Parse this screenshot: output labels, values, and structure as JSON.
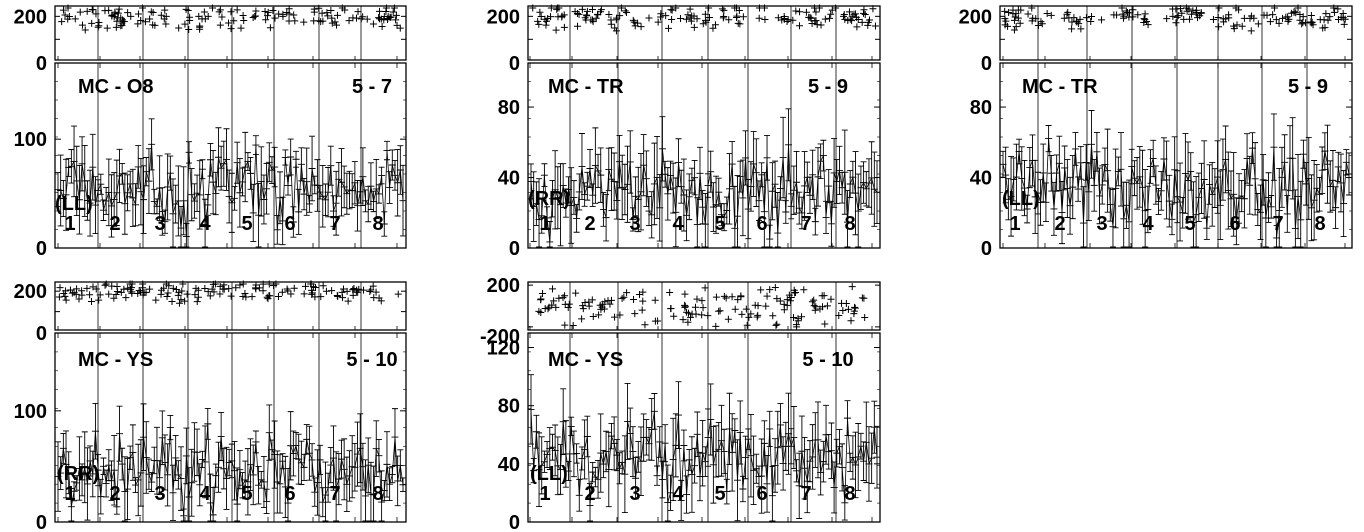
{
  "chart_data": [
    {
      "type": "scatter",
      "title": "MC - O8",
      "baseline": "5 - 7",
      "polarization": "(LL)",
      "phase_axis": {
        "ticks": [
          "200",
          "0"
        ],
        "ylim": [
          -180,
          290
        ]
      },
      "amp_axis": {
        "ticks": [
          "100",
          "0"
        ],
        "ylim": [
          0,
          170
        ]
      },
      "scans": [
        "1",
        "2",
        "3",
        "4",
        "5",
        "6",
        "7",
        "8"
      ],
      "amp_mean": 55,
      "amp_spread": 30,
      "phase_mean": 190,
      "phase_spread": 80
    },
    {
      "type": "scatter",
      "title": "MC - TR",
      "baseline": "5 - 9",
      "polarization": "(RR)",
      "phase_axis": {
        "ticks": [
          "200",
          "0"
        ],
        "ylim": [
          -180,
          290
        ]
      },
      "amp_axis": {
        "ticks": [
          "80",
          "40",
          "0"
        ],
        "ylim": [
          0,
          105
        ]
      },
      "scans": [
        "1",
        "2",
        "3",
        "4",
        "5",
        "6",
        "7",
        "8"
      ],
      "amp_mean": 32,
      "amp_spread": 20,
      "phase_mean": 190,
      "phase_spread": 80
    },
    {
      "type": "scatter",
      "title": "MC - TR",
      "baseline": "5 - 9",
      "polarization": "(LL)",
      "phase_axis": {
        "ticks": [
          "200",
          "0"
        ],
        "ylim": [
          -180,
          290
        ]
      },
      "amp_axis": {
        "ticks": [
          "80",
          "40",
          "0"
        ],
        "ylim": [
          0,
          105
        ]
      },
      "scans": [
        "1",
        "2",
        "3",
        "4",
        "5",
        "6",
        "7",
        "8"
      ],
      "amp_mean": 35,
      "amp_spread": 20,
      "phase_mean": 190,
      "phase_spread": 80
    },
    {
      "type": "scatter",
      "title": "MC - YS",
      "baseline": "5 - 10",
      "polarization": "(RR)",
      "phase_axis": {
        "ticks": [
          "200",
          "0"
        ],
        "ylim": [
          -180,
          290
        ]
      },
      "amp_axis": {
        "ticks": [
          "100",
          "0"
        ],
        "ylim": [
          0,
          170
        ]
      },
      "scans": [
        "1",
        "2",
        "3",
        "4",
        "5",
        "6",
        "7",
        "8"
      ],
      "amp_mean": 45,
      "amp_spread": 30,
      "phase_mean": 190,
      "phase_spread": 80
    },
    {
      "type": "scatter",
      "title": "MC - YS",
      "baseline": "5 - 10",
      "polarization": "(LL)",
      "phase_axis": {
        "ticks": [
          "200",
          "-200"
        ],
        "ylim": [
          -230,
          230
        ]
      },
      "amp_axis": {
        "ticks": [
          "120",
          "80",
          "40",
          "0"
        ],
        "ylim": [
          0,
          130
        ]
      },
      "scans": [
        "1",
        "2",
        "3",
        "4",
        "5",
        "6",
        "7",
        "8"
      ],
      "amp_mean": 45,
      "amp_spread": 25,
      "phase_mean": 0,
      "phase_spread": 150
    }
  ]
}
